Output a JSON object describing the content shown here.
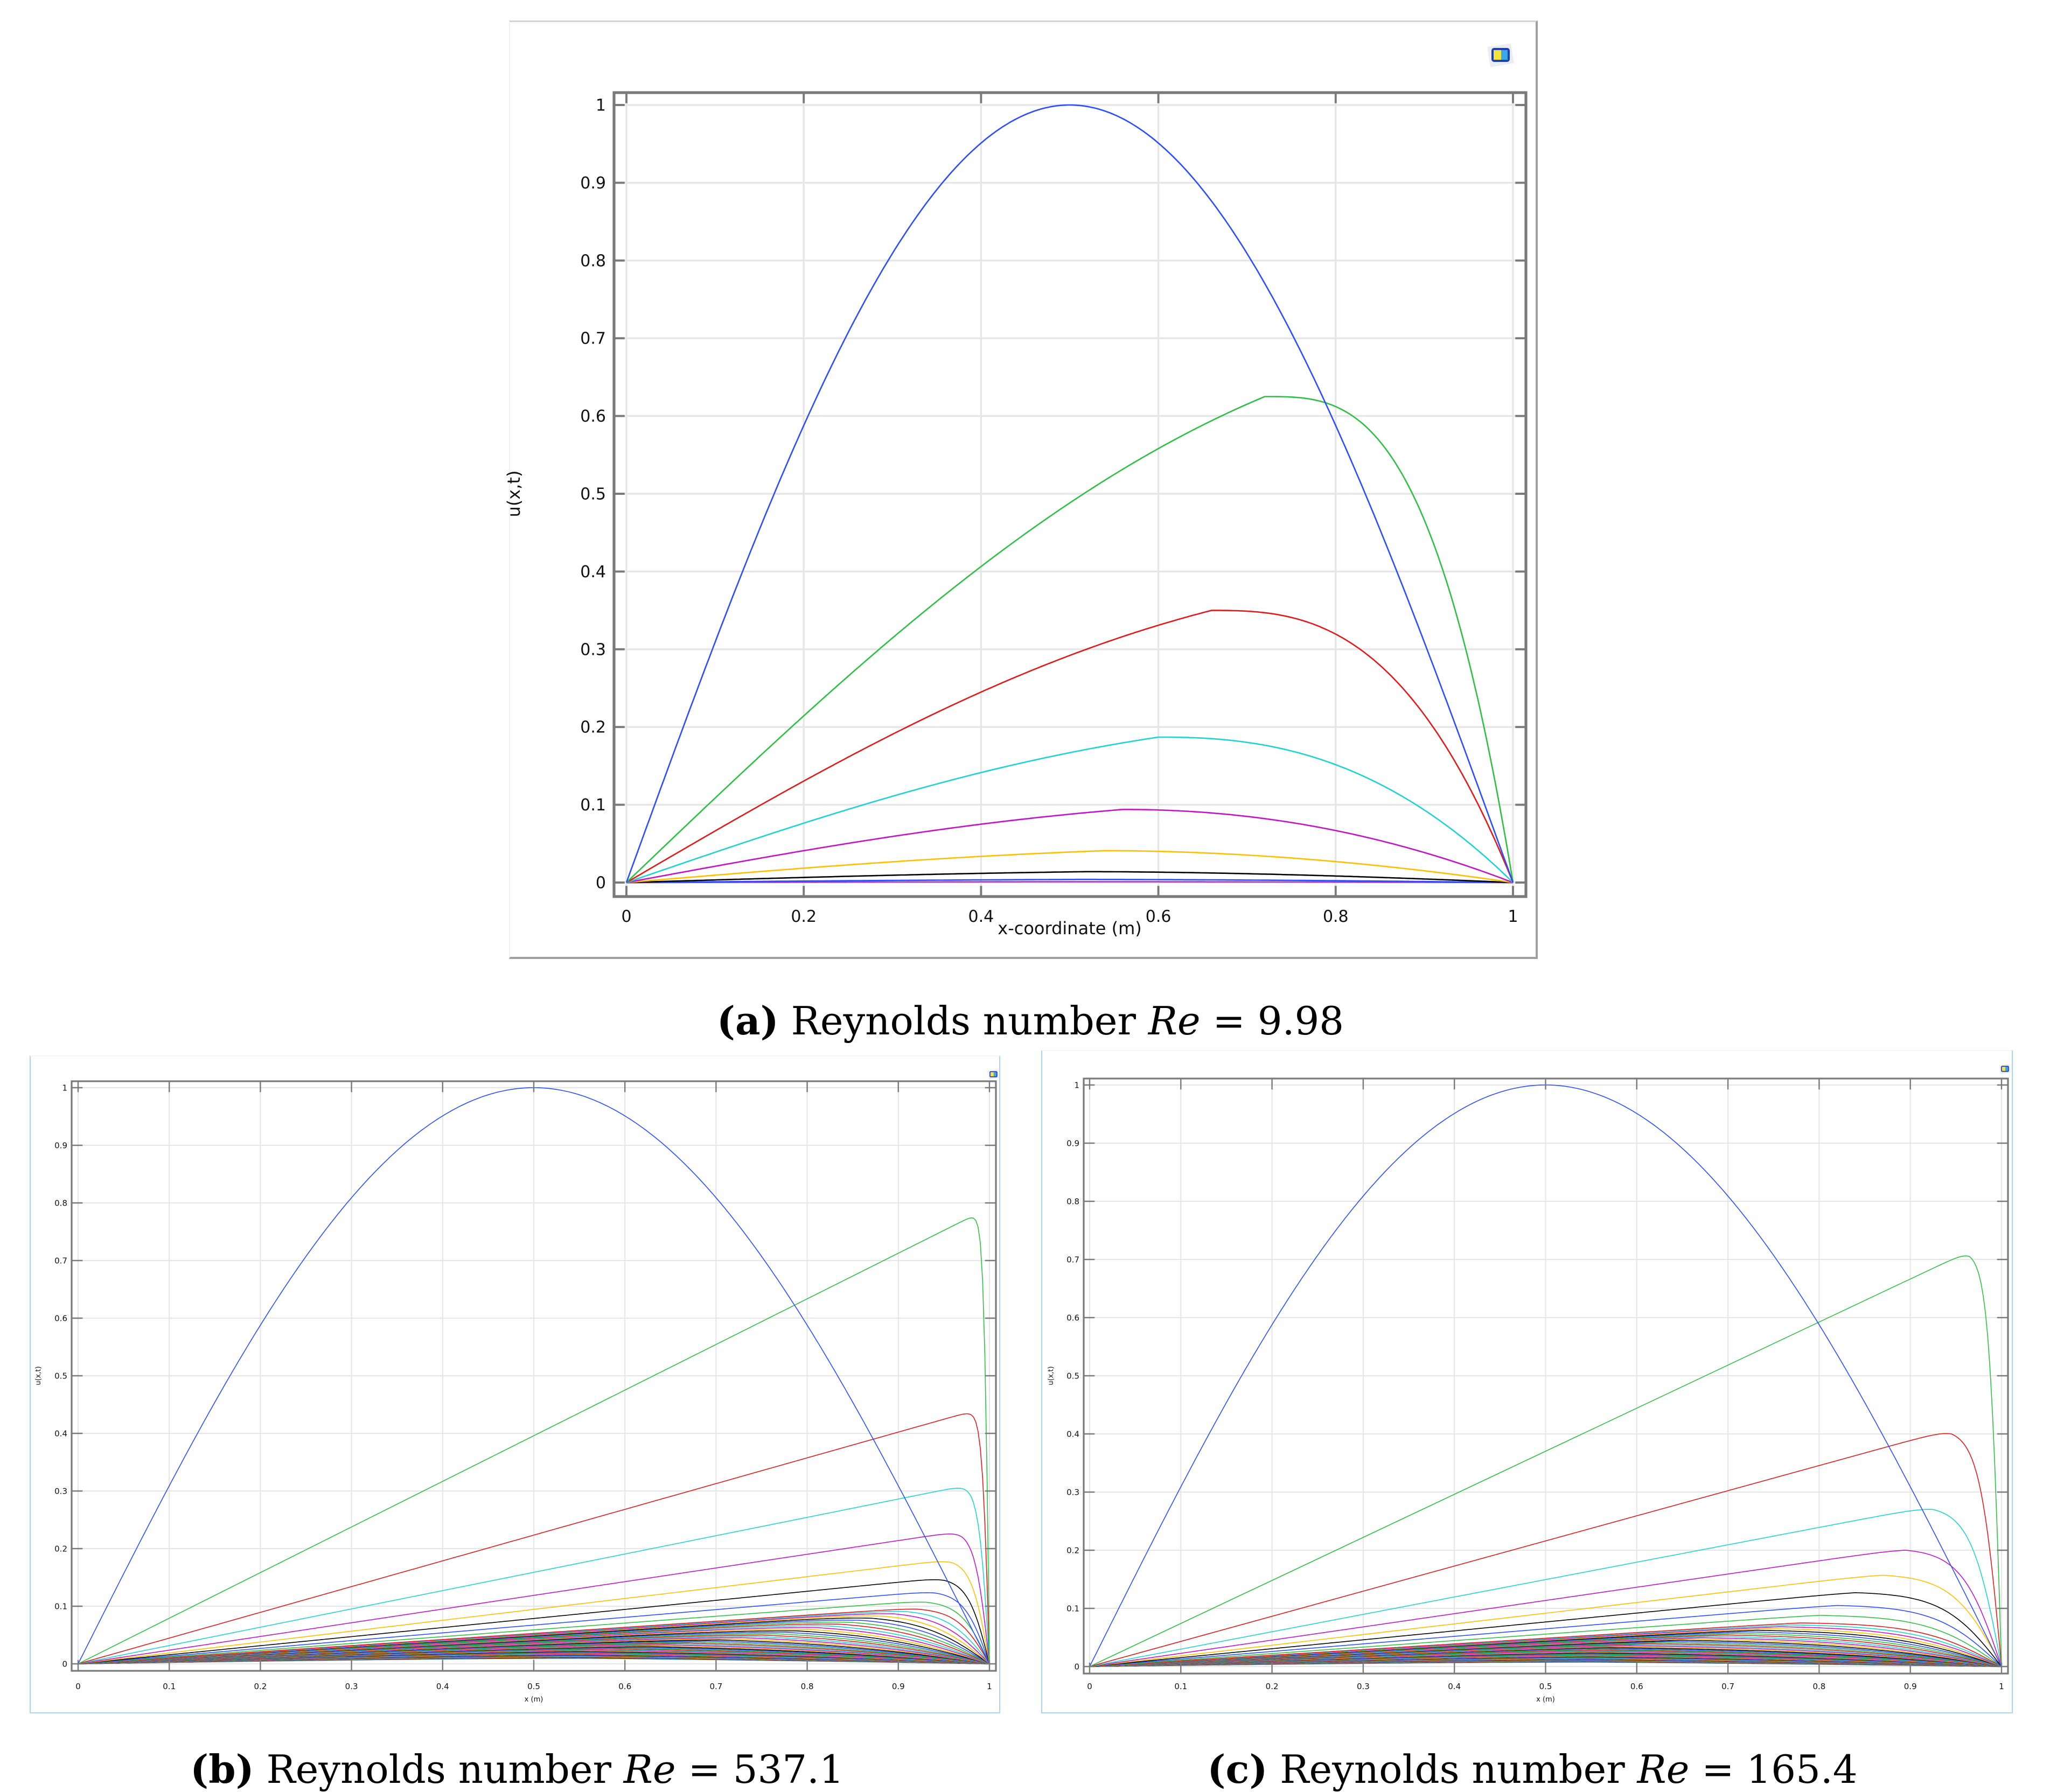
{
  "figure": {
    "captions": {
      "a": {
        "label": "(a)",
        "prefix": "Reynolds number",
        "symbol": "Re",
        "eq": "=",
        "value": "9.98"
      },
      "b": {
        "label": "(b)",
        "prefix": "Reynolds number",
        "symbol": "Re",
        "eq": "=",
        "value": "537.1"
      },
      "c": {
        "label": "(c)",
        "prefix": "Reynolds number",
        "symbol": "Re",
        "eq": "=",
        "value": "165.4"
      }
    },
    "icon": "comsol-graphics-icon"
  },
  "colors": {
    "palette": [
      "#2b4dff",
      "#2fbf45",
      "#e01b1b",
      "#1fd3d3",
      "#c414c8",
      "#ffbf00",
      "#000000"
    ],
    "grid": "#e6e6e6",
    "frame": "#7a7a7a",
    "panel_border_bottom": "#a9d6f5"
  },
  "chart_data": [
    {
      "id": "a",
      "type": "line",
      "title": "(a) Reynolds number Re = 9.98",
      "xlabel": "x-coordinate (m)",
      "ylabel": "u(x,t)",
      "xlim": [
        0,
        1
      ],
      "ylim": [
        0,
        1
      ],
      "xticks": [
        "0",
        "0.2",
        "0.4",
        "0.6",
        "0.8",
        "1"
      ],
      "yticks": [
        "0",
        "0.1",
        "0.2",
        "0.3",
        "0.4",
        "0.5",
        "0.6",
        "0.7",
        "0.8",
        "0.9",
        "1"
      ],
      "grid": true,
      "legend": null,
      "description": "Solutions of Burgers' equation at successive times; initial condition u=sin(pi x); profiles decay and skew right",
      "series": [
        {
          "name": "t0",
          "color": "#2b4dff",
          "peak": 1.0,
          "peak_x": 0.5,
          "shape": "sine"
        },
        {
          "name": "t1",
          "color": "#2fbf45",
          "peak": 0.625,
          "peak_x": 0.72,
          "shape": "skew",
          "k": 6
        },
        {
          "name": "t2",
          "color": "#e01b1b",
          "peak": 0.35,
          "peak_x": 0.66,
          "shape": "skew",
          "k": 5
        },
        {
          "name": "t3",
          "color": "#1fd3d3",
          "peak": 0.187,
          "peak_x": 0.6,
          "shape": "skew",
          "k": 4
        },
        {
          "name": "t4",
          "color": "#c414c8",
          "peak": 0.094,
          "peak_x": 0.56,
          "shape": "skew",
          "k": 3
        },
        {
          "name": "t5",
          "color": "#ffbf00",
          "peak": 0.041,
          "peak_x": 0.54,
          "shape": "skew",
          "k": 2.5
        },
        {
          "name": "t6",
          "color": "#000000",
          "peak": 0.014,
          "peak_x": 0.52,
          "shape": "skew",
          "k": 2
        },
        {
          "name": "t7",
          "color": "#2b4dff",
          "peak": 0.004,
          "peak_x": 0.51,
          "shape": "skew",
          "k": 2
        },
        {
          "name": "t8",
          "color": "#9b3fb5",
          "peak": 0.001,
          "peak_x": 0.5,
          "shape": "skew",
          "k": 2
        }
      ]
    },
    {
      "id": "b",
      "type": "line",
      "title": "(b) Reynolds number Re = 537.1",
      "xlabel": "x (m)",
      "ylabel": "u(x,t)",
      "xlim": [
        0,
        1
      ],
      "ylim": [
        0,
        1
      ],
      "xticks": [
        "0",
        "0.1",
        "0.2",
        "0.3",
        "0.4",
        "0.5",
        "0.6",
        "0.7",
        "0.8",
        "0.9",
        "1"
      ],
      "yticks": [
        "0",
        "0.1",
        "0.2",
        "0.3",
        "0.4",
        "0.5",
        "0.6",
        "0.7",
        "0.8",
        "0.9",
        "1"
      ],
      "grid": true,
      "legend": null,
      "description": "High Re: near-linear ramps with steep boundary layer at x=1; many time steps",
      "series_count": 60,
      "series": [
        {
          "name": "t0",
          "color": "#2b4dff",
          "peak": 1.0,
          "peak_x": 0.5,
          "shape": "sine"
        },
        {
          "name": "t1",
          "color": "#2fbf45",
          "peak": 0.73,
          "peak_x": 0.99,
          "shape": "ramp",
          "bl": 0.006
        },
        {
          "name": "t2",
          "color": "#e01b1b",
          "peak": 0.42,
          "peak_x": 0.985,
          "shape": "ramp",
          "bl": 0.008
        },
        {
          "name": "t3",
          "color": "#1fd3d3",
          "peak": 0.29,
          "peak_x": 0.98,
          "shape": "ramp",
          "bl": 0.012
        },
        {
          "name": "t4",
          "color": "#c414c8",
          "peak": 0.22,
          "peak_x": 0.97,
          "shape": "ramp",
          "bl": 0.016
        },
        {
          "name": "t5",
          "color": "#ffbf00",
          "peak": 0.175,
          "peak_x": 0.96,
          "shape": "ramp",
          "bl": 0.02
        },
        {
          "name": "t6",
          "color": "#000000",
          "peak": 0.145,
          "peak_x": 0.95,
          "shape": "ramp",
          "bl": 0.024
        },
        {
          "name": "t7",
          "color": "#2b4dff",
          "peak": 0.123,
          "peak_x": 0.94,
          "shape": "ramp",
          "bl": 0.028
        },
        {
          "name": "t8",
          "color": "#2fbf45",
          "peak": 0.107,
          "peak_x": 0.93,
          "shape": "ramp",
          "bl": 0.032
        },
        {
          "name": "t9",
          "color": "#e01b1b",
          "peak": 0.095,
          "peak_x": 0.92,
          "shape": "ramp",
          "bl": 0.036
        }
      ]
    },
    {
      "id": "c",
      "type": "line",
      "title": "(c) Reynolds number Re = 165.4",
      "xlabel": "x (m)",
      "ylabel": "u(x,t)",
      "xlim": [
        0,
        1
      ],
      "ylim": [
        0,
        1
      ],
      "xticks": [
        "0",
        "0.1",
        "0.2",
        "0.3",
        "0.4",
        "0.5",
        "0.6",
        "0.7",
        "0.8",
        "0.9",
        "1"
      ],
      "yticks": [
        "0",
        "0.1",
        "0.2",
        "0.3",
        "0.4",
        "0.5",
        "0.6",
        "0.7",
        "0.8",
        "0.9",
        "1"
      ],
      "grid": true,
      "legend": null,
      "description": "Moderate Re: ramps with boundary layer near x=1, thicker than (b)",
      "series_count": 60,
      "series": [
        {
          "name": "t0",
          "color": "#2b4dff",
          "peak": 1.0,
          "peak_x": 0.5,
          "shape": "sine"
        },
        {
          "name": "t1",
          "color": "#2fbf45",
          "peak": 0.705,
          "peak_x": 0.965,
          "shape": "ramp",
          "bl": 0.014
        },
        {
          "name": "t2",
          "color": "#e01b1b",
          "peak": 0.4,
          "peak_x": 0.945,
          "shape": "ramp",
          "bl": 0.024
        },
        {
          "name": "t3",
          "color": "#1fd3d3",
          "peak": 0.27,
          "peak_x": 0.925,
          "shape": "ramp",
          "bl": 0.034
        },
        {
          "name": "t4",
          "color": "#c414c8",
          "peak": 0.2,
          "peak_x": 0.895,
          "shape": "ramp",
          "bl": 0.044
        },
        {
          "name": "t5",
          "color": "#ffbf00",
          "peak": 0.157,
          "peak_x": 0.87,
          "shape": "ramp",
          "bl": 0.054
        },
        {
          "name": "t6",
          "color": "#000000",
          "peak": 0.127,
          "peak_x": 0.84,
          "shape": "ramp",
          "bl": 0.064
        },
        {
          "name": "t7",
          "color": "#2b4dff",
          "peak": 0.105,
          "peak_x": 0.82,
          "shape": "ramp",
          "bl": 0.072
        },
        {
          "name": "t8",
          "color": "#2fbf45",
          "peak": 0.088,
          "peak_x": 0.8,
          "shape": "ramp",
          "bl": 0.08
        },
        {
          "name": "t9",
          "color": "#e01b1b",
          "peak": 0.075,
          "peak_x": 0.78,
          "shape": "ramp",
          "bl": 0.088
        }
      ]
    }
  ]
}
